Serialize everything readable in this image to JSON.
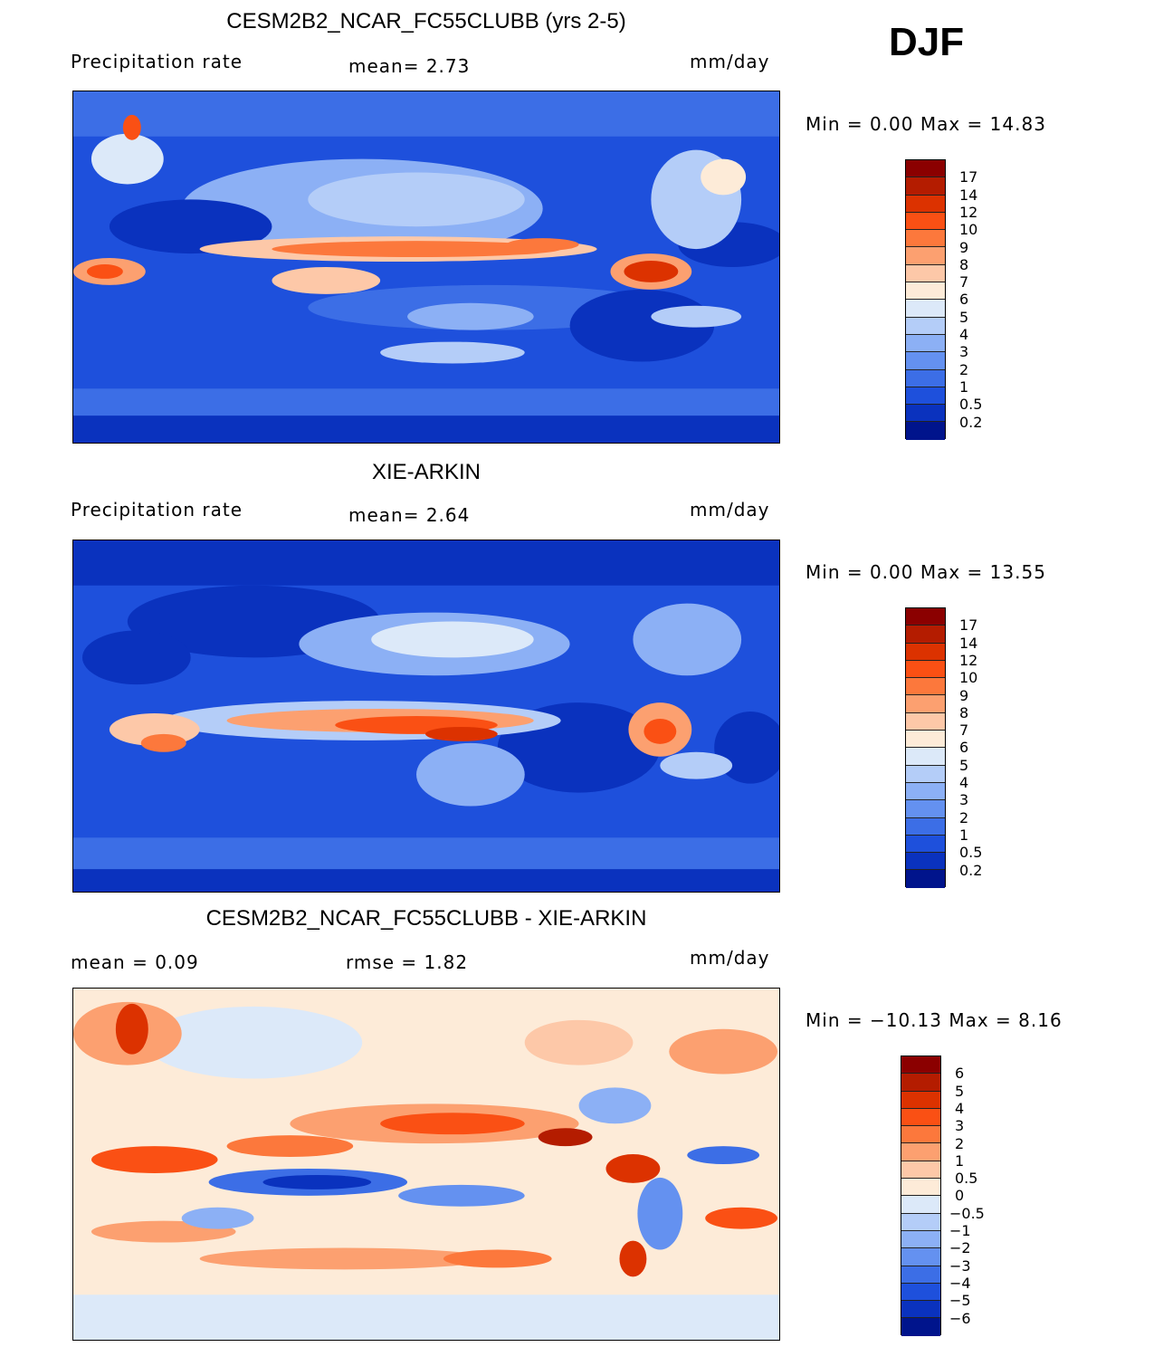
{
  "season": "DJF",
  "panels": [
    {
      "title": "CESM2B2_NCAR_FC55CLUBB (yrs 2-5)",
      "left_label": "Precipitation  rate",
      "stat_text": "mean=    2.73",
      "stat2_text": "",
      "units": "mm/day",
      "minmax": "Min  =     0.00  Max  =    14.83",
      "ticks": [
        "17",
        "14",
        "12",
        "10",
        "9",
        "8",
        "7",
        "6",
        "5",
        "4",
        "3",
        "2",
        "1",
        "0.5",
        "0.2"
      ],
      "colors": [
        "#8b0000",
        "#b41c00",
        "#dc3200",
        "#fa5014",
        "#fc783c",
        "#fca070",
        "#fdc8a8",
        "#fdebd8",
        "#dce9f9",
        "#b4cdf8",
        "#8cb0f5",
        "#6491f0",
        "#3c6ee6",
        "#1e50dc",
        "#0a32be",
        "#00148c"
      ]
    },
    {
      "title": "XIE-ARKIN",
      "left_label": "Precipitation  rate",
      "stat_text": "mean=    2.64",
      "stat2_text": "",
      "units": "mm/day",
      "minmax": "Min  =     0.00  Max  =    13.55",
      "ticks": [
        "17",
        "14",
        "12",
        "10",
        "9",
        "8",
        "7",
        "6",
        "5",
        "4",
        "3",
        "2",
        "1",
        "0.5",
        "0.2"
      ],
      "colors": [
        "#8b0000",
        "#b41c00",
        "#dc3200",
        "#fa5014",
        "#fc783c",
        "#fca070",
        "#fdc8a8",
        "#fdebd8",
        "#dce9f9",
        "#b4cdf8",
        "#8cb0f5",
        "#6491f0",
        "#3c6ee6",
        "#1e50dc",
        "#0a32be",
        "#00148c"
      ]
    },
    {
      "title": "CESM2B2_NCAR_FC55CLUBB - XIE-ARKIN",
      "left_label": "mean  =     0.09",
      "stat_text": "rmse  =     1.82",
      "stat2_text": "",
      "units": "mm/day",
      "minmax": "Min  = −10.13  Max  =     8.16",
      "ticks": [
        "6",
        "5",
        "4",
        "3",
        "2",
        "1",
        "0.5",
        "0",
        "−0.5",
        "−1",
        "−2",
        "−3",
        "−4",
        "−5",
        "−6"
      ],
      "colors": [
        "#8b0000",
        "#b41c00",
        "#dc3200",
        "#fa5014",
        "#fc783c",
        "#fca070",
        "#fdc8a8",
        "#fdebd8",
        "#dce9f9",
        "#b4cdf8",
        "#8cb0f5",
        "#6491f0",
        "#3c6ee6",
        "#1e50dc",
        "#0a32be",
        "#00148c"
      ]
    }
  ]
}
